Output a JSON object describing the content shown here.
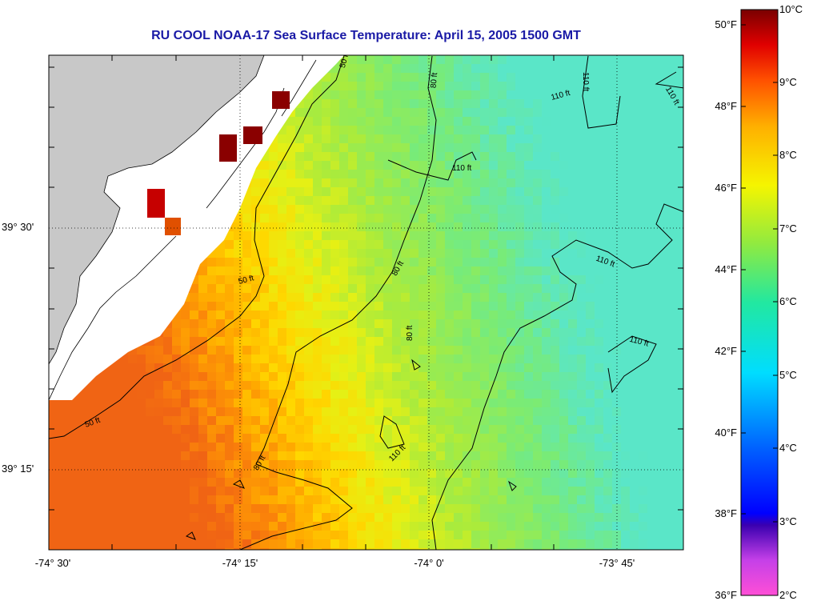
{
  "title": "RU COOL  NOAA-17  Sea Surface Temperature:  April 15, 2005 1500 GMT",
  "axes": {
    "lat_labels": [
      "39° 30'",
      "39° 15'"
    ],
    "lon_labels": [
      "-74° 30'",
      "-74° 15'",
      "-74° 0'",
      "-73° 45'"
    ]
  },
  "colorbar": {
    "fahrenheit_labels": [
      "50°F",
      "48°F",
      "46°F",
      "44°F",
      "42°F",
      "40°F",
      "38°F",
      "36°F"
    ],
    "celsius_labels": [
      "10°C",
      "9°C",
      "8°C",
      "7°C",
      "6°C",
      "5°C",
      "4°C",
      "3°C",
      "2°C"
    ],
    "range_c": [
      2,
      10
    ]
  },
  "contour_labels": [
    "50 ft",
    "50 ft",
    "50 ft",
    "80 ft",
    "80 ft",
    "80 ft",
    "80 ft",
    "110 ft",
    "110 ft",
    "110 ft",
    "110 ft",
    "110 ft",
    "110 ft",
    "110 ft"
  ],
  "colors": {
    "land": "#c8c8c8",
    "no_data": "#ffffff",
    "title": "#1a1aa6",
    "contour": "#000000"
  }
}
